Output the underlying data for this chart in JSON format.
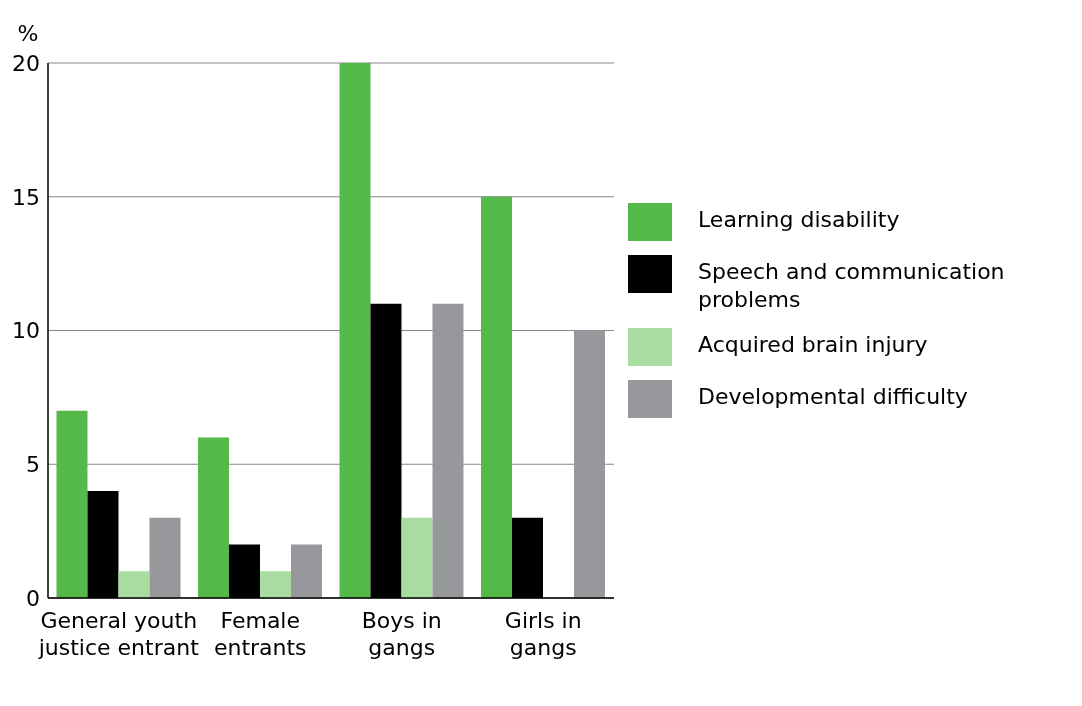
{
  "chart_data": {
    "type": "bar",
    "ylabel": "%",
    "categories": [
      "General youth justice entrant",
      "Female entrants",
      "Boys in gangs",
      "Girls in gangs"
    ],
    "series": [
      {
        "name": "Learning disability",
        "color": "#55b94a",
        "values": [
          7,
          6,
          20,
          15
        ]
      },
      {
        "name": "Speech and communication problems",
        "color": "#000000",
        "values": [
          4,
          2,
          11,
          3
        ]
      },
      {
        "name": "Acquired brain injury",
        "color": "#a9dca1",
        "values": [
          1,
          1,
          3,
          0
        ]
      },
      {
        "name": "Developmental difficulty",
        "color": "#97989c",
        "values": [
          3,
          2,
          11,
          10
        ]
      }
    ],
    "ylim": [
      0,
      20
    ],
    "yticks": [
      0,
      5,
      10,
      15,
      20
    ],
    "grid": "y",
    "legend": "right"
  }
}
